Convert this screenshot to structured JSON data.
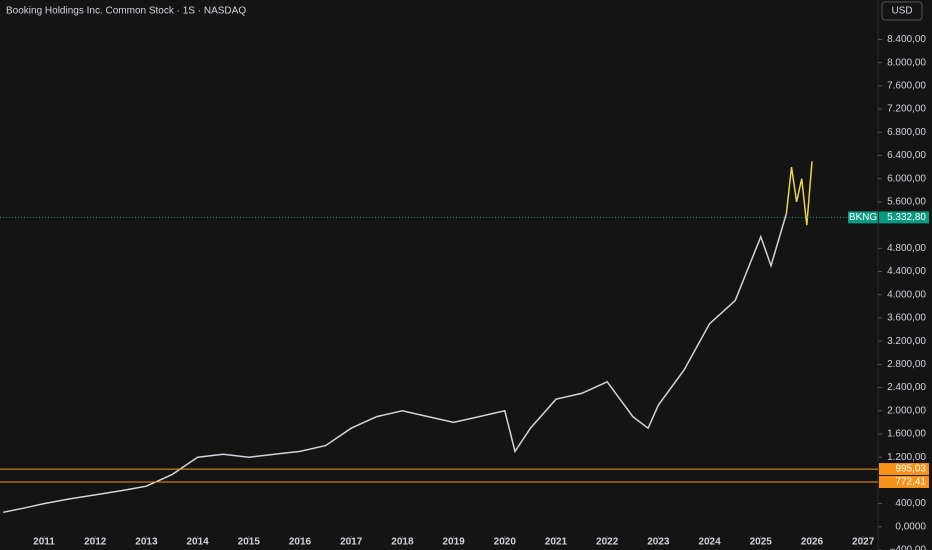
{
  "chart_data": {
    "type": "line",
    "title": "Booking Holdings Inc. Common Stock · 1S · NASDAQ",
    "currency": "USD",
    "xlim": [
      2010.14,
      2027.29
    ],
    "ylim": [
      -400,
      9080
    ],
    "xticks": [
      2011,
      2012,
      2013,
      2014,
      2015,
      2016,
      2017,
      2018,
      2019,
      2020,
      2021,
      2022,
      2023,
      2024,
      2025,
      2026,
      2027
    ],
    "yticks": [
      {
        "value": 8400,
        "label": "8.400,00"
      },
      {
        "value": 8000,
        "label": "8.000,00"
      },
      {
        "value": 7600,
        "label": "7.600,00"
      },
      {
        "value": 7200,
        "label": "7.200,00"
      },
      {
        "value": 6800,
        "label": "6.800,00"
      },
      {
        "value": 6400,
        "label": "6.400,00"
      },
      {
        "value": 6000,
        "label": "6.000,00"
      },
      {
        "value": 5600,
        "label": "5.600,00"
      },
      {
        "value": 4800,
        "label": "4.800,00"
      },
      {
        "value": 4400,
        "label": "4.400,00"
      },
      {
        "value": 4000,
        "label": "4.000,00"
      },
      {
        "value": 3600,
        "label": "3.600,00"
      },
      {
        "value": 3200,
        "label": "3.200,00"
      },
      {
        "value": 2800,
        "label": "2.800,00"
      },
      {
        "value": 2400,
        "label": "2.400,00"
      },
      {
        "value": 2000,
        "label": "2.000,00"
      },
      {
        "value": 1600,
        "label": "1.600,00"
      },
      {
        "value": 1200,
        "label": "1.200,00"
      },
      {
        "value": 400,
        "label": "400,00"
      },
      {
        "value": 0,
        "label": "0,0000"
      },
      {
        "value": -400,
        "label": "−400,00"
      }
    ],
    "series": [
      {
        "color": "#d1d4dc",
        "x": [
          2010.2,
          2010.6,
          2011,
          2011.5,
          2012,
          2012.5,
          2013,
          2013.5,
          2014,
          2014.5,
          2015,
          2015.5,
          2016,
          2016.5,
          2017,
          2017.5,
          2018,
          2018.5,
          2019,
          2019.5,
          2020,
          2020.2,
          2020.5,
          2021,
          2021.5,
          2022,
          2022.5,
          2022.8,
          2023,
          2023.5,
          2024,
          2024.5,
          2025,
          2025.2,
          2025.5
        ],
        "values": [
          250,
          320,
          400,
          480,
          550,
          620,
          700,
          900,
          1200,
          1250,
          1200,
          1250,
          1300,
          1400,
          1700,
          1900,
          2000,
          1900,
          1800,
          1900,
          2000,
          1300,
          1700,
          2200,
          2300,
          2500,
          1900,
          1700,
          2100,
          2700,
          3500,
          3900,
          5000,
          4500,
          5400
        ]
      },
      {
        "color": "#e8d44d",
        "x": [
          2025.5,
          2025.6,
          2025.7,
          2025.8,
          2025.9,
          2026
        ],
        "values": [
          5400,
          6200,
          5600,
          6000,
          5200,
          6300
        ]
      }
    ],
    "price_labels": [
      {
        "name": "BKNG",
        "value": 5332.8,
        "label": "5.332,80",
        "color": "#089981"
      },
      {
        "value": 995.03,
        "label": "995,03",
        "color": "#f7931a"
      },
      {
        "value": 772.41,
        "label": "772,41",
        "color": "#f7931a"
      }
    ]
  }
}
